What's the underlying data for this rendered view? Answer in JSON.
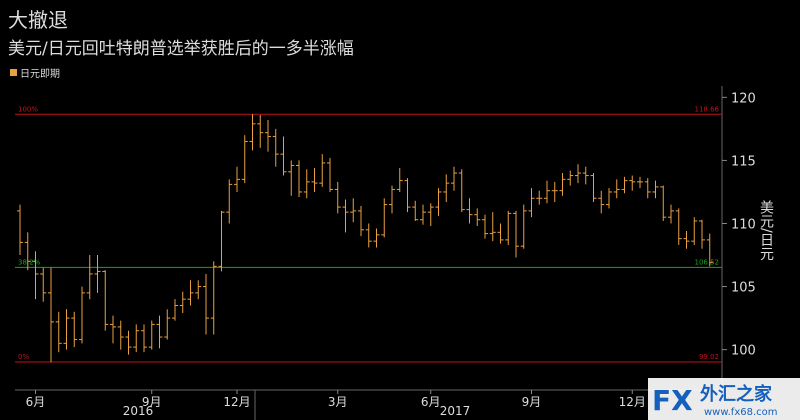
{
  "chart_data": {
    "type": "ohlc",
    "title": "大撤退",
    "subtitle": "美元/日元回吐特朗普选举获胜后的一多半涨幅",
    "y_label": "美元/日元",
    "categories": [
      null,
      null,
      "6月",
      null,
      null,
      null,
      null,
      null,
      null,
      null,
      null,
      null,
      null,
      null,
      null,
      null,
      null,
      "9月",
      null,
      null,
      null,
      null,
      null,
      null,
      null,
      null,
      null,
      null,
      "12月",
      null,
      null,
      null,
      null,
      null,
      null,
      null,
      null,
      null,
      null,
      null,
      null,
      "3月",
      null,
      null,
      null,
      null,
      null,
      null,
      null,
      null,
      null,
      null,
      null,
      "6月",
      null,
      null,
      null,
      null,
      null,
      null,
      null,
      null,
      null,
      null,
      null,
      null,
      "9月",
      null,
      null,
      null,
      null,
      null,
      null,
      null,
      null,
      null,
      null,
      null,
      null,
      "12月",
      null,
      null,
      null,
      null,
      null,
      null,
      null,
      null,
      null,
      null
    ],
    "years": [
      "2016",
      "2017"
    ],
    "series": [
      {
        "name": "日元即期",
        "color": "#e8a040",
        "open": [
          111.0,
          108.5,
          107.0,
          106.0,
          104.5,
          102.2,
          100.5,
          102.5,
          100.8,
          104.5,
          106.0,
          106.2,
          102.0,
          101.8,
          101.0,
          100.2,
          101.5,
          100.2,
          102.0,
          101.0,
          102.5,
          103.5,
          104.0,
          104.5,
          105.0,
          102.5,
          106.6,
          110.9,
          113.1,
          113.5,
          116.5,
          117.9,
          117.2,
          116.9,
          115.5,
          114.1,
          114.6,
          112.5,
          113.3,
          113.2,
          114.8,
          112.7,
          111.3,
          110.9,
          111.0,
          109.5,
          108.6,
          109.1,
          111.5,
          112.7,
          113.4,
          111.3,
          110.3,
          110.9,
          111.3,
          112.5,
          113.2,
          114.0,
          111.1,
          110.7,
          110.3,
          109.2,
          109.3,
          108.7,
          110.8,
          108.2,
          111.0,
          112.0,
          112.0,
          112.6,
          112.6,
          113.5,
          113.8,
          114.0,
          113.8,
          112.0,
          111.5,
          112.5,
          112.7,
          113.4,
          113.3,
          113.3,
          112.5,
          112.9,
          110.5,
          111.0,
          108.8,
          108.6,
          110.2,
          108.7
        ],
        "high": [
          111.5,
          109.3,
          107.8,
          106.5,
          106.5,
          103.0,
          103.2,
          103.0,
          105.0,
          107.5,
          107.5,
          106.3,
          102.7,
          102.3,
          101.5,
          102.0,
          102.0,
          102.3,
          102.7,
          103.2,
          104.0,
          104.6,
          105.5,
          105.5,
          106.0,
          107.0,
          111.0,
          113.5,
          114.5,
          117.0,
          118.66,
          118.6,
          118.2,
          117.5,
          116.9,
          115.0,
          115.0,
          114.3,
          114.4,
          115.5,
          115.2,
          113.3,
          111.9,
          112.0,
          111.4,
          110.0,
          109.6,
          112.0,
          113.0,
          114.4,
          113.6,
          111.8,
          111.5,
          111.6,
          112.8,
          113.9,
          114.5,
          114.3,
          112.0,
          111.2,
          110.7,
          110.9,
          110.0,
          111.0,
          111.0,
          111.5,
          112.8,
          112.6,
          113.4,
          113.3,
          114.0,
          114.2,
          114.7,
          114.5,
          114.0,
          112.6,
          112.8,
          113.5,
          113.7,
          113.8,
          113.7,
          113.6,
          113.4,
          113.0,
          111.5,
          111.2,
          109.4,
          110.5,
          110.3,
          109.2
        ],
        "low": [
          107.5,
          106.3,
          104.0,
          103.8,
          99.0,
          99.8,
          100.0,
          100.2,
          100.5,
          104.0,
          104.5,
          101.5,
          100.5,
          100.0,
          99.6,
          99.8,
          99.8,
          100.0,
          100.1,
          100.8,
          102.3,
          102.9,
          103.5,
          104.0,
          101.2,
          101.2,
          106.2,
          110.0,
          112.5,
          113.2,
          115.8,
          116.0,
          115.7,
          114.5,
          113.8,
          112.2,
          112.1,
          112.0,
          112.5,
          112.9,
          112.5,
          110.8,
          109.3,
          110.1,
          109.0,
          108.1,
          108.1,
          108.9,
          110.8,
          112.5,
          110.9,
          110.2,
          109.9,
          109.8,
          110.6,
          111.7,
          112.6,
          110.9,
          110.0,
          109.8,
          108.8,
          108.6,
          108.4,
          108.3,
          107.3,
          108.0,
          110.5,
          111.5,
          111.6,
          111.7,
          112.2,
          113.0,
          113.2,
          113.1,
          111.7,
          110.8,
          111.2,
          112.0,
          112.4,
          112.6,
          112.8,
          112.0,
          112.0,
          110.2,
          110.0,
          108.3,
          108.0,
          108.3,
          108.0,
          106.6
        ],
        "close": [
          108.5,
          107.0,
          106.0,
          104.5,
          102.2,
          100.5,
          102.5,
          100.8,
          104.5,
          106.0,
          106.2,
          102.0,
          101.8,
          101.0,
          100.2,
          101.5,
          100.2,
          102.0,
          101.0,
          102.5,
          103.5,
          104.0,
          104.5,
          105.0,
          102.5,
          106.6,
          110.9,
          113.1,
          113.5,
          116.5,
          117.9,
          117.2,
          116.9,
          115.5,
          114.1,
          114.6,
          112.5,
          113.3,
          113.2,
          114.8,
          112.7,
          111.3,
          110.9,
          111.0,
          109.5,
          108.6,
          109.1,
          111.5,
          112.7,
          113.4,
          111.3,
          110.3,
          110.9,
          111.3,
          112.5,
          113.2,
          114.0,
          111.1,
          110.7,
          110.3,
          109.2,
          109.3,
          108.7,
          110.8,
          108.2,
          111.0,
          112.0,
          112.0,
          112.6,
          112.6,
          113.5,
          113.8,
          114.0,
          113.8,
          112.0,
          111.5,
          112.5,
          112.7,
          113.4,
          113.3,
          113.3,
          112.5,
          112.9,
          110.5,
          111.0,
          108.8,
          108.6,
          110.2,
          108.7,
          106.9
        ]
      }
    ],
    "levels": [
      {
        "value": 118.66,
        "pct": "100%",
        "color": "#c0141e"
      },
      {
        "value": 106.52,
        "pct": "38.2%",
        "color": "#1aa51a"
      },
      {
        "value": 99.02,
        "pct": "0%",
        "color": "#c0141e"
      }
    ],
    "ylim": [
      96.8,
      120.9
    ],
    "yticks": [
      100,
      105,
      110,
      115,
      120
    ],
    "watermark": {
      "brand": "FX",
      "name": "外汇之家",
      "url": "www.fx68.com"
    }
  }
}
